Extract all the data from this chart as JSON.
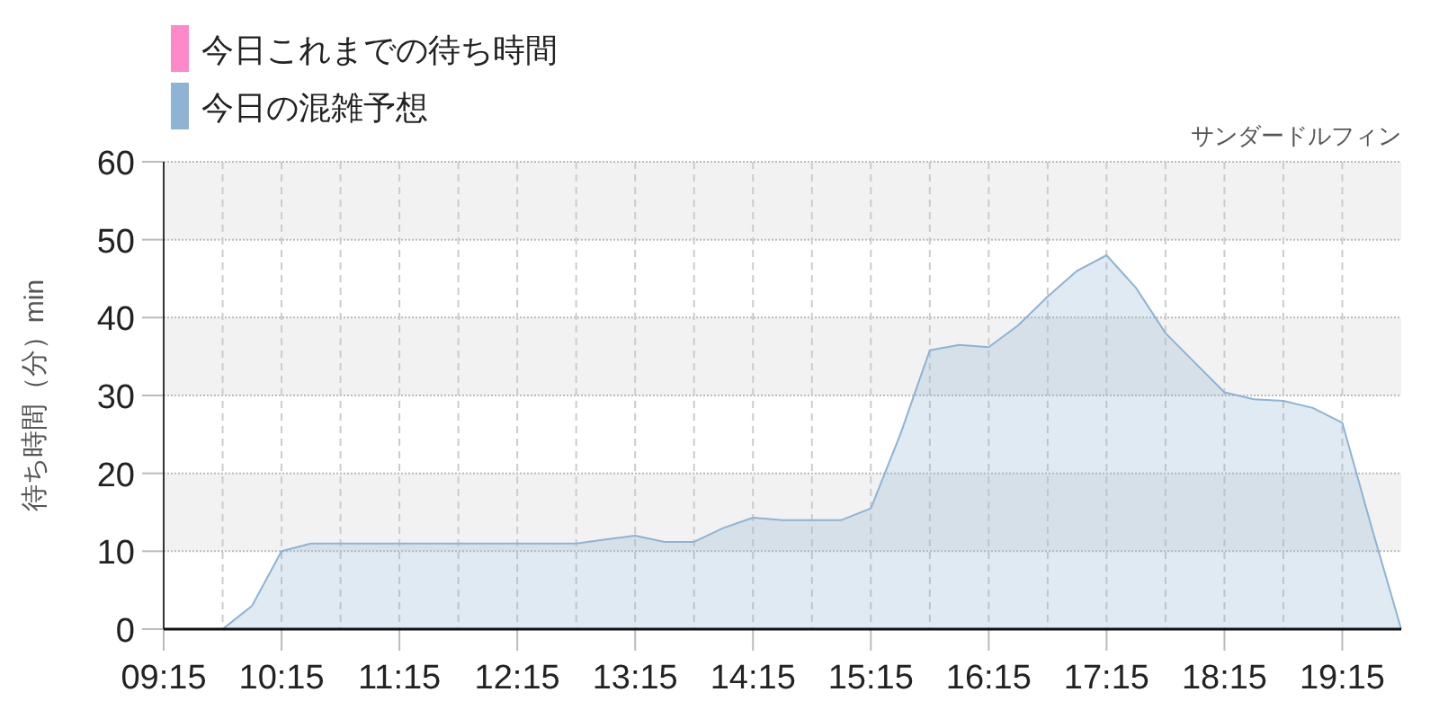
{
  "chart_data": {
    "type": "area",
    "subtitle": "サンダードルフィン",
    "ylabel": "待ち時間（分）min",
    "series": [
      {
        "name": "今日これまでの待ち時間",
        "color": "#ff88c8"
      },
      {
        "name": "今日の混雑予想",
        "color": "#8fb3d3",
        "x": [
          9.25,
          9.5,
          9.75,
          10,
          10.25,
          10.5,
          10.75,
          11,
          11.25,
          11.5,
          11.75,
          12,
          12.25,
          12.5,
          12.75,
          13,
          13.25,
          13.5,
          13.75,
          14,
          14.25,
          14.5,
          14.75,
          15,
          15.25,
          15.5,
          15.75,
          16,
          16.25,
          16.5,
          16.75,
          17,
          17.25,
          17.5,
          17.75,
          18,
          18.25,
          18.5,
          18.75,
          19,
          19.25,
          19.5,
          19.75
        ],
        "values": [
          0,
          0,
          0,
          3,
          10,
          11,
          11,
          11,
          11,
          11,
          11,
          11,
          11,
          11,
          11,
          11.5,
          12,
          11.2,
          11.2,
          13,
          14.3,
          14,
          14,
          14,
          15.5,
          25,
          35.8,
          36.5,
          36.2,
          39,
          42.7,
          46,
          48,
          43.8,
          38,
          34.2,
          30.4,
          29.5,
          29.3,
          28.4,
          26.5,
          13,
          0
        ]
      }
    ],
    "xlim": [
      9.25,
      19.75
    ],
    "xticks": [
      {
        "value": 9.25,
        "label": "09:15"
      },
      {
        "value": 9.75,
        "label": null
      },
      {
        "value": 10.25,
        "label": "10:15"
      },
      {
        "value": 10.75,
        "label": null
      },
      {
        "value": 11.25,
        "label": "11:15"
      },
      {
        "value": 11.75,
        "label": null
      },
      {
        "value": 12.25,
        "label": "12:15"
      },
      {
        "value": 12.75,
        "label": null
      },
      {
        "value": 13.25,
        "label": "13:15"
      },
      {
        "value": 13.75,
        "label": null
      },
      {
        "value": 14.25,
        "label": "14:15"
      },
      {
        "value": 14.75,
        "label": null
      },
      {
        "value": 15.25,
        "label": "15:15"
      },
      {
        "value": 15.75,
        "label": null
      },
      {
        "value": 16.25,
        "label": "16:15"
      },
      {
        "value": 16.75,
        "label": null
      },
      {
        "value": 17.25,
        "label": "17:15"
      },
      {
        "value": 17.75,
        "label": null
      },
      {
        "value": 18.25,
        "label": "18:15"
      },
      {
        "value": 18.75,
        "label": null
      },
      {
        "value": 19.25,
        "label": "19:15"
      }
    ],
    "ylim": [
      0,
      60
    ],
    "yticks": [
      0,
      10,
      20,
      30,
      40,
      50,
      60
    ],
    "bands": [
      {
        "axis": "y",
        "from": 10,
        "to": 20,
        "color": "#f2f2f2"
      },
      {
        "axis": "y",
        "from": 30,
        "to": 40,
        "color": "#f2f2f2"
      },
      {
        "axis": "y",
        "from": 50,
        "to": 60,
        "color": "#f2f2f2"
      }
    ],
    "grid": true,
    "legend": "top left"
  }
}
